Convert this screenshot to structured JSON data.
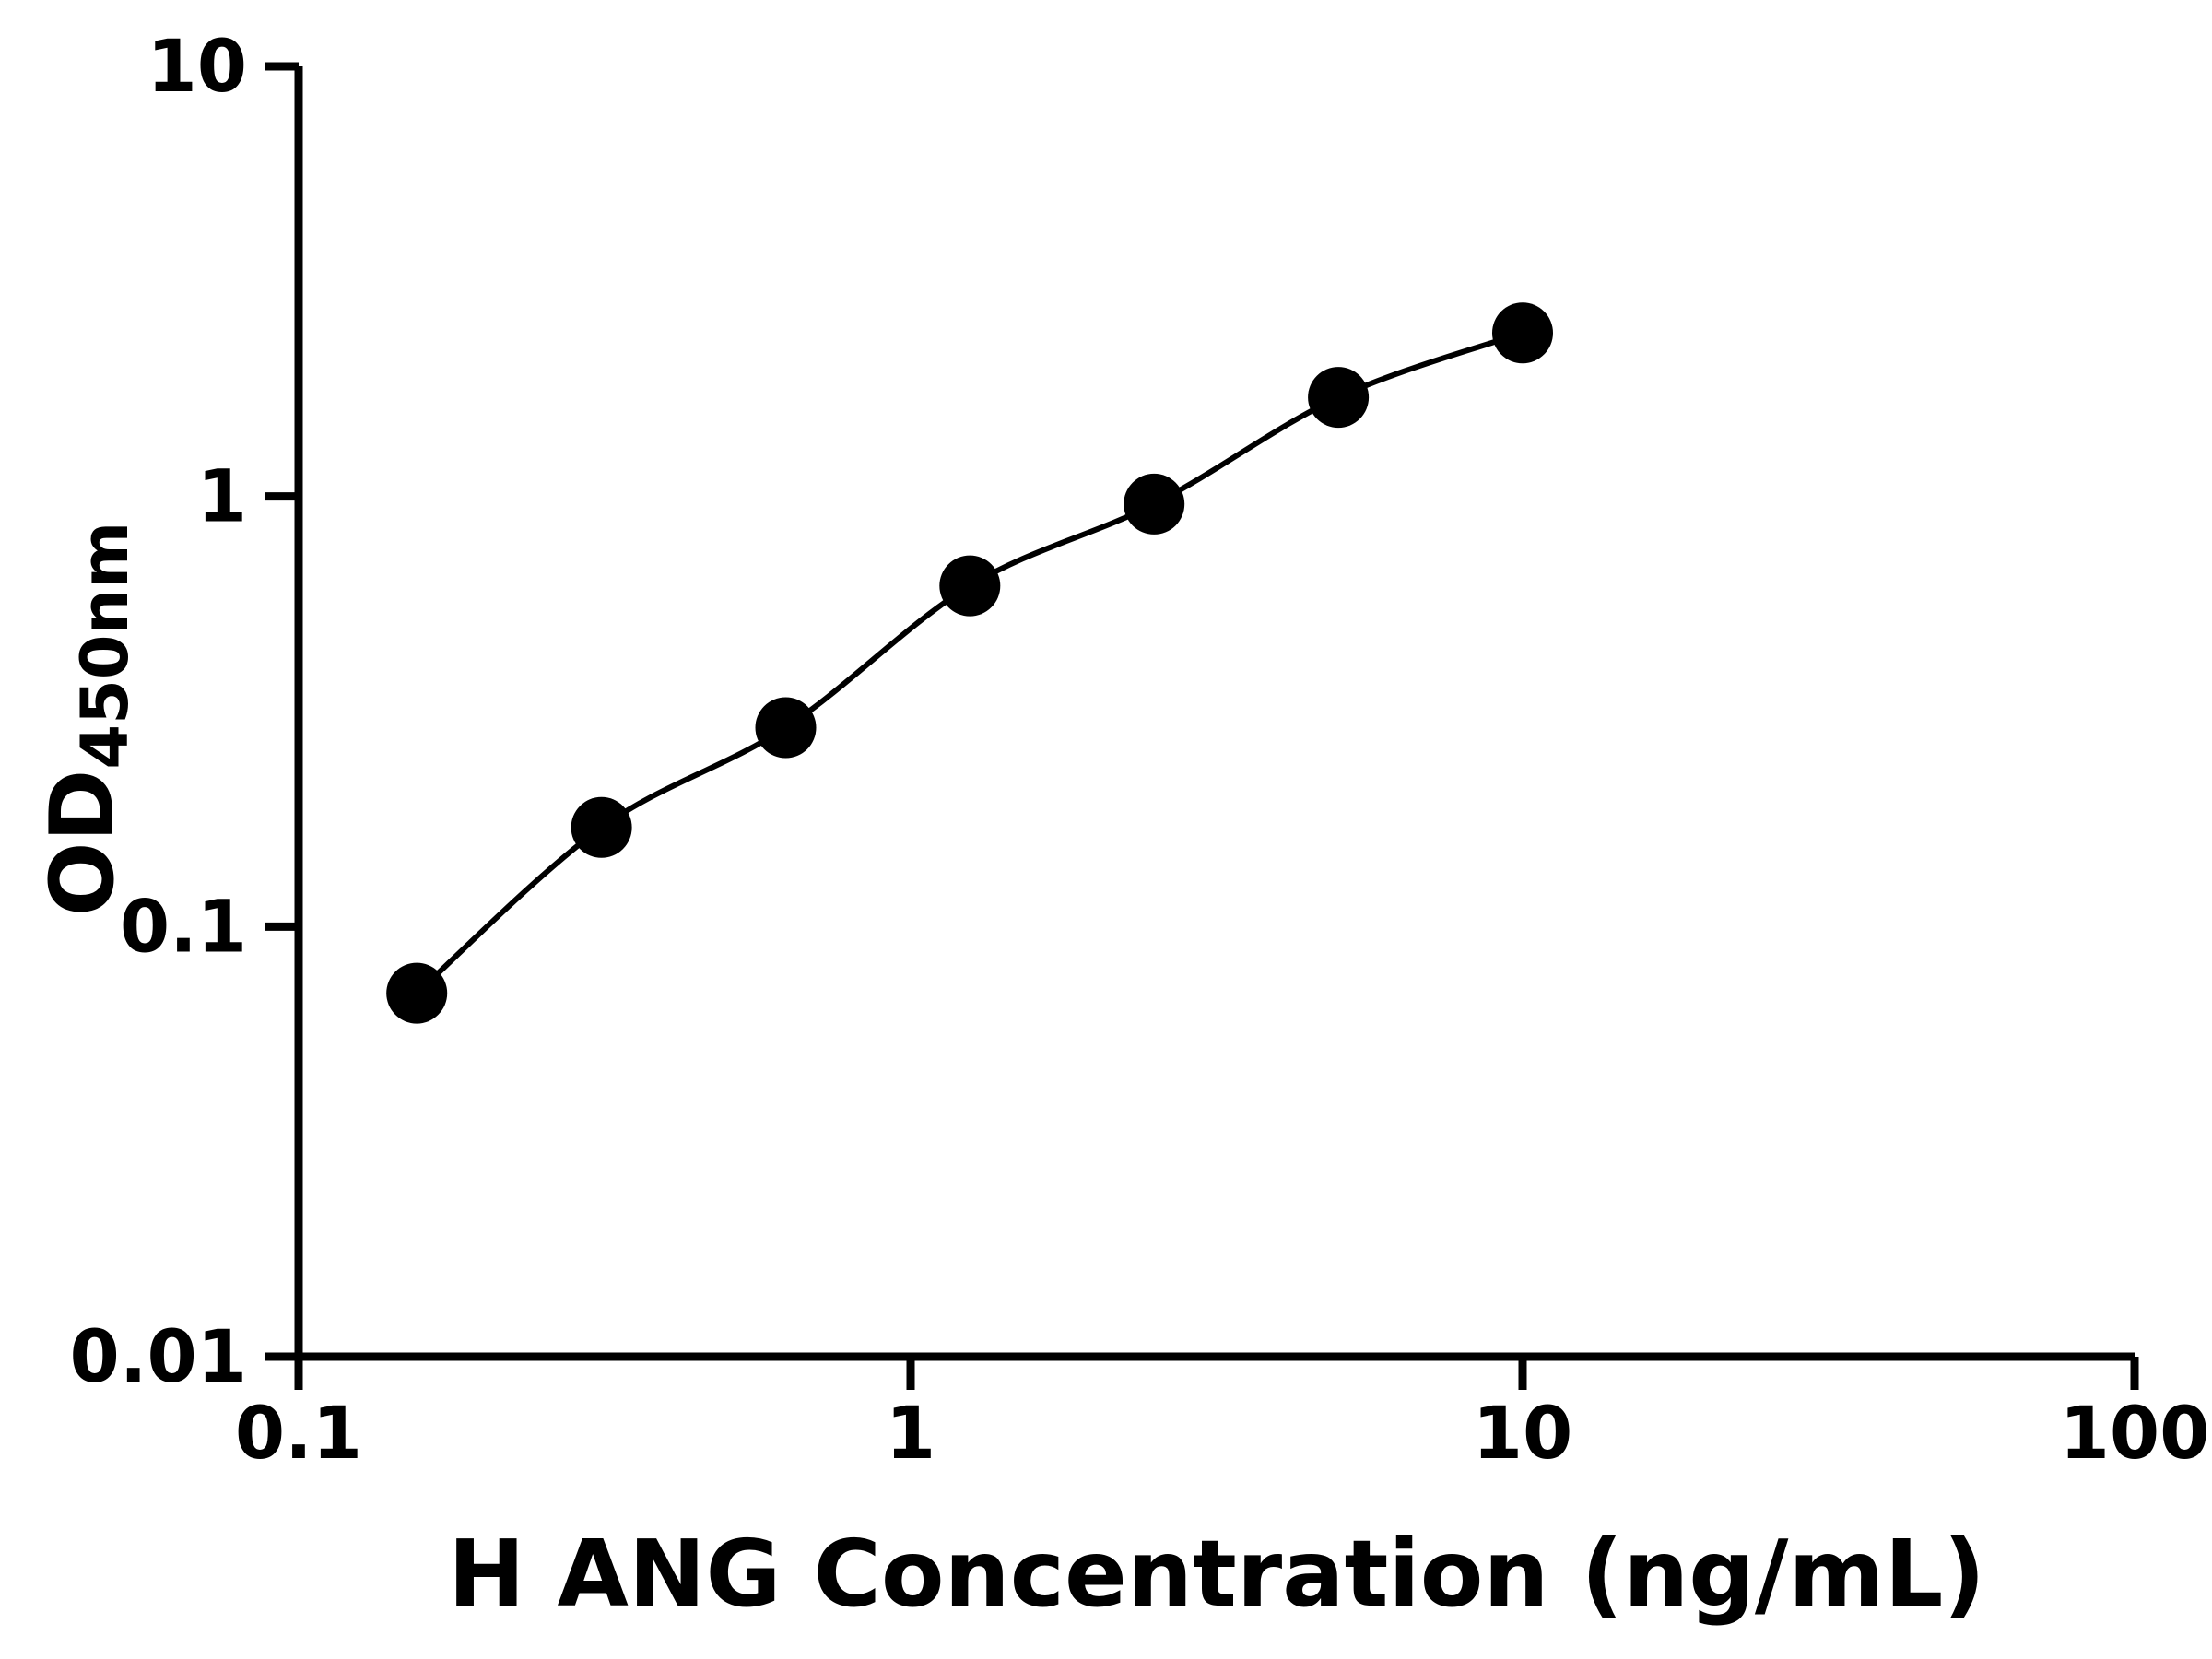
{
  "chart_data": {
    "type": "line",
    "title": "",
    "xlabel": "H ANG Concentration (ng/mL)",
    "ylabel_main": "OD",
    "ylabel_sub": "450nm",
    "x_scale": "log",
    "y_scale": "log",
    "xlim": [
      0.1,
      100
    ],
    "ylim": [
      0.01,
      10
    ],
    "x_ticks": [
      0.1,
      1,
      10,
      100
    ],
    "x_tick_labels": [
      "0.1",
      "1",
      "10",
      "100"
    ],
    "y_ticks": [
      0.01,
      0.1,
      1,
      10
    ],
    "y_tick_labels": [
      "0.01",
      "0.1",
      "1",
      "10"
    ],
    "grid": false,
    "legend": false,
    "background": "#ffffff",
    "axis_color": "#000000",
    "series": [
      {
        "x": [
          0.156,
          0.3125,
          0.625,
          1.25,
          2.5,
          5,
          10
        ],
        "y": [
          0.07,
          0.17,
          0.29,
          0.62,
          0.96,
          1.7,
          2.4
        ],
        "marker": "circle",
        "color": "#000000"
      }
    ]
  }
}
